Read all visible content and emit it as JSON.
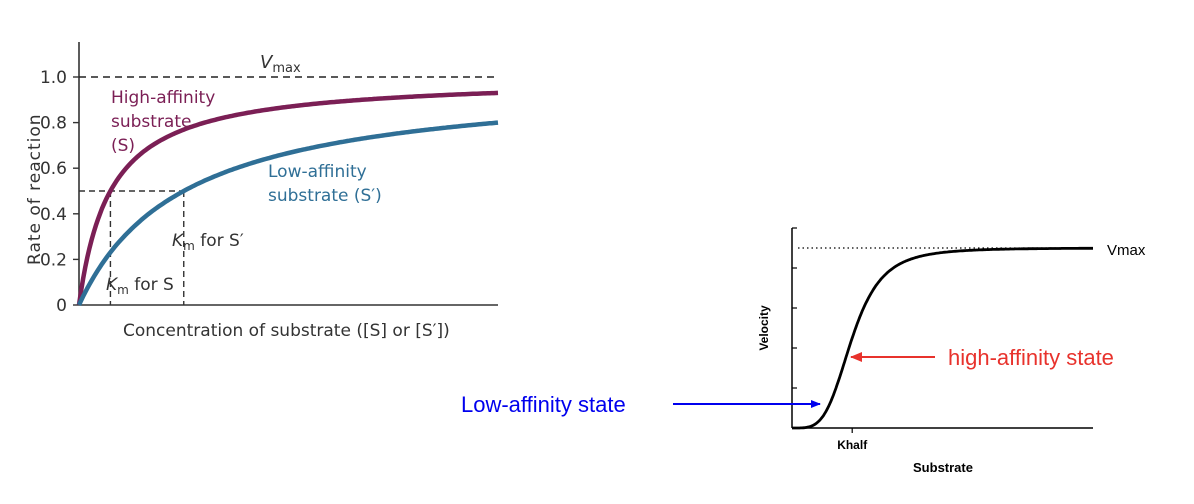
{
  "chart_data": [
    {
      "type": "line",
      "xlabel": "Concentration of substrate ([S] or [S′])",
      "ylabel": "Rate of reaction",
      "ylim": [
        0,
        1.0
      ],
      "y_ticks": [
        "0",
        "0.2",
        "0.4",
        "0.6",
        "0.8",
        "1.0"
      ],
      "y_tick_values": [
        0,
        0.2,
        0.4,
        0.6,
        0.8,
        1.0
      ],
      "vmax_label": "V",
      "vmax_sub": "max",
      "vmax_value": 1.0,
      "half_value": 0.5,
      "grid": false,
      "series": [
        {
          "name_lines": [
            "High-affinity",
            "substrate",
            "(S)"
          ],
          "km": 0.075,
          "color": "#7b1f55"
        },
        {
          "name_lines": [
            "Low-affinity",
            "substrate (S′)"
          ],
          "km": 0.25,
          "color": "#2f6f96"
        }
      ],
      "annotations": {
        "km_s": {
          "k": "K",
          "sub": "m",
          "rest": " for S"
        },
        "km_s_prime": {
          "k": "K",
          "sub": "m",
          "rest": " for S′"
        }
      }
    },
    {
      "type": "line",
      "xlabel": "Substrate",
      "ylabel": "Velocity",
      "x_tick_label": "Khalf",
      "vmax_label": "Vmax",
      "grid": false,
      "series": [
        {
          "hill_n": 4,
          "khalf": 0.2,
          "vmax": 1.0,
          "color": "#000000"
        }
      ],
      "annotations": {
        "low_label": "Low-affinity state",
        "low_color": "#0000ee",
        "high_label": "high-affinity state",
        "high_color": "#e8322c"
      }
    }
  ]
}
